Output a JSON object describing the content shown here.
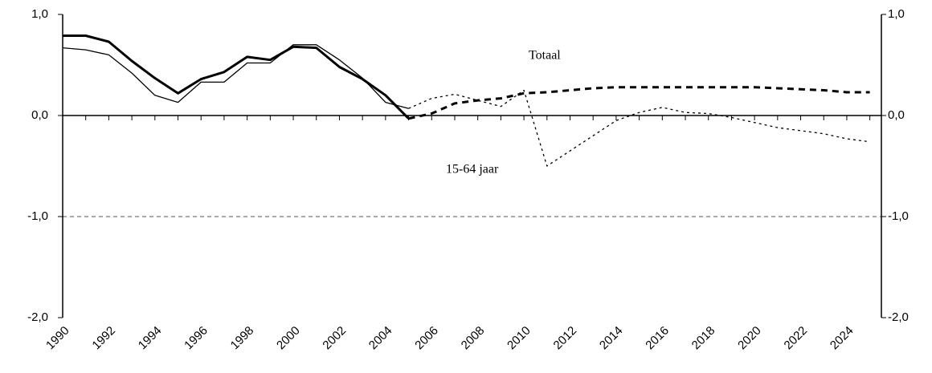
{
  "chart_data": {
    "type": "line",
    "x": [
      1990,
      1991,
      1992,
      1993,
      1994,
      1995,
      1996,
      1997,
      1998,
      1999,
      2000,
      2001,
      2002,
      2003,
      2004,
      2005,
      2006,
      2007,
      2008,
      2009,
      2010,
      2011,
      2012,
      2013,
      2014,
      2015,
      2016,
      2017,
      2018,
      2019,
      2020,
      2021,
      2022,
      2023,
      2024,
      2025
    ],
    "xlim": [
      1990,
      2025.5
    ],
    "xticks": [
      1990,
      1992,
      1994,
      1996,
      1998,
      2000,
      2002,
      2004,
      2006,
      2008,
      2010,
      2012,
      2014,
      2016,
      2018,
      2020,
      2022,
      2024
    ],
    "xminorticks": [
      1991,
      1993,
      1995,
      1997,
      1999,
      2001,
      2003,
      2005,
      2007,
      2009,
      2011,
      2013,
      2015,
      2017,
      2019,
      2021,
      2023,
      2025
    ],
    "ylim": [
      -2,
      1
    ],
    "yticks": [
      {
        "value": -2,
        "label": "-2,0"
      },
      {
        "value": -1,
        "label": "-1,0"
      },
      {
        "value": 0,
        "label": "0,0"
      },
      {
        "value": 1,
        "label": "1,0"
      }
    ],
    "y2lim": [
      -2,
      1
    ],
    "y2ticks": [
      {
        "value": -2,
        "label": "-2,0"
      },
      {
        "value": -1,
        "label": "-1,0"
      },
      {
        "value": 0,
        "label": "0,0"
      },
      {
        "value": 1,
        "label": "1,0"
      }
    ],
    "x_axis_at": 0,
    "hlines": [
      {
        "value": -1,
        "style": "dashed"
      }
    ],
    "series": [
      {
        "name": "Totaal",
        "color": "#000000",
        "line_width": 3,
        "segments": [
          {
            "style": "solid",
            "values": [
              0.79,
              0.79,
              0.73,
              0.54,
              0.37,
              0.22,
              0.36,
              0.43,
              0.58,
              0.55,
              0.68,
              0.67,
              0.48,
              0.36,
              0.2,
              -0.03,
              null,
              null,
              null,
              null,
              null,
              null,
              null,
              null,
              null,
              null,
              null,
              null,
              null,
              null,
              null,
              null,
              null,
              null,
              null,
              null
            ]
          },
          {
            "style": "dashed",
            "values": [
              null,
              null,
              null,
              null,
              null,
              null,
              null,
              null,
              null,
              null,
              null,
              null,
              null,
              null,
              null,
              -0.03,
              0.02,
              0.12,
              0.15,
              0.17,
              0.22,
              0.23,
              0.25,
              0.27,
              0.28,
              0.28,
              0.28,
              0.28,
              0.28,
              0.28,
              0.28,
              0.27,
              0.26,
              0.25,
              0.23,
              0.23
            ]
          }
        ]
      },
      {
        "name": "15-64 jaar",
        "color": "#000000",
        "line_width": 1.3,
        "segments": [
          {
            "style": "solid",
            "values": [
              0.67,
              0.65,
              0.6,
              0.42,
              0.2,
              0.13,
              0.33,
              0.33,
              0.52,
              0.52,
              0.7,
              0.7,
              0.55,
              0.37,
              0.13,
              0.07,
              null,
              null,
              null,
              null,
              null,
              null,
              null,
              null,
              null,
              null,
              null,
              null,
              null,
              null,
              null,
              null,
              null,
              null,
              null,
              null
            ]
          },
          {
            "style": "dotted",
            "values": [
              null,
              null,
              null,
              null,
              null,
              null,
              null,
              null,
              null,
              null,
              null,
              null,
              null,
              null,
              null,
              0.07,
              0.17,
              0.21,
              0.15,
              0.09,
              0.25,
              -0.5,
              -0.35,
              -0.2,
              -0.05,
              0.03,
              0.08,
              0.03,
              0.02,
              -0.02,
              -0.07,
              -0.12,
              -0.15,
              -0.18,
              -0.23,
              -0.26
            ]
          }
        ]
      }
    ],
    "annotations": [
      {
        "text": "Totaal",
        "series": 0
      },
      {
        "text": "15-64 jaar",
        "series": 1
      }
    ]
  }
}
